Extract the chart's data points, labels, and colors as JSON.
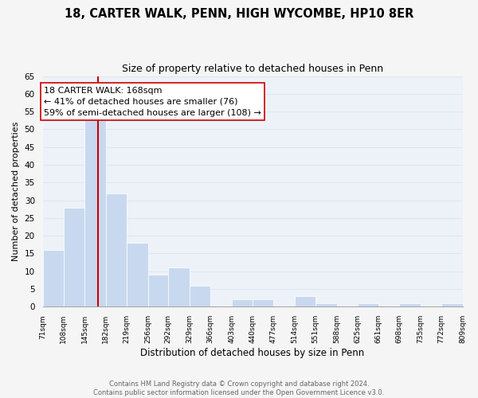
{
  "title": "18, CARTER WALK, PENN, HIGH WYCOMBE, HP10 8ER",
  "subtitle": "Size of property relative to detached houses in Penn",
  "xlabel": "Distribution of detached houses by size in Penn",
  "ylabel": "Number of detached properties",
  "bin_edges": [
    71,
    108,
    145,
    182,
    219,
    256,
    292,
    329,
    366,
    403,
    440,
    477,
    514,
    551,
    588,
    625,
    661,
    698,
    735,
    772,
    809
  ],
  "counts": [
    16,
    28,
    53,
    32,
    18,
    9,
    11,
    6,
    0,
    2,
    2,
    0,
    3,
    1,
    0,
    1,
    0,
    1,
    0,
    1
  ],
  "bar_color": "#c8d9ef",
  "bar_edge_color": "#ffffff",
  "vline_x": 168,
  "vline_color": "#cc0000",
  "ylim": [
    0,
    65
  ],
  "yticks": [
    0,
    5,
    10,
    15,
    20,
    25,
    30,
    35,
    40,
    45,
    50,
    55,
    60,
    65
  ],
  "annotation_text": "18 CARTER WALK: 168sqm\n← 41% of detached houses are smaller (76)\n59% of semi-detached houses are larger (108) →",
  "annotation_box_color": "#ffffff",
  "annotation_box_edge": "#cc0000",
  "grid_color": "#dde6f0",
  "background_color": "#edf2f9",
  "fig_background_color": "#f5f5f5",
  "footer_text": "Contains HM Land Registry data © Crown copyright and database right 2024.\nContains public sector information licensed under the Open Government Licence v3.0.",
  "title_fontsize": 10.5,
  "subtitle_fontsize": 9,
  "annotation_fontsize": 8,
  "ylabel_fontsize": 8,
  "xlabel_fontsize": 8.5,
  "tick_labels": [
    "71sqm",
    "108sqm",
    "145sqm",
    "182sqm",
    "219sqm",
    "256sqm",
    "292sqm",
    "329sqm",
    "366sqm",
    "403sqm",
    "440sqm",
    "477sqm",
    "514sqm",
    "551sqm",
    "588sqm",
    "625sqm",
    "661sqm",
    "698sqm",
    "735sqm",
    "772sqm",
    "809sqm"
  ]
}
